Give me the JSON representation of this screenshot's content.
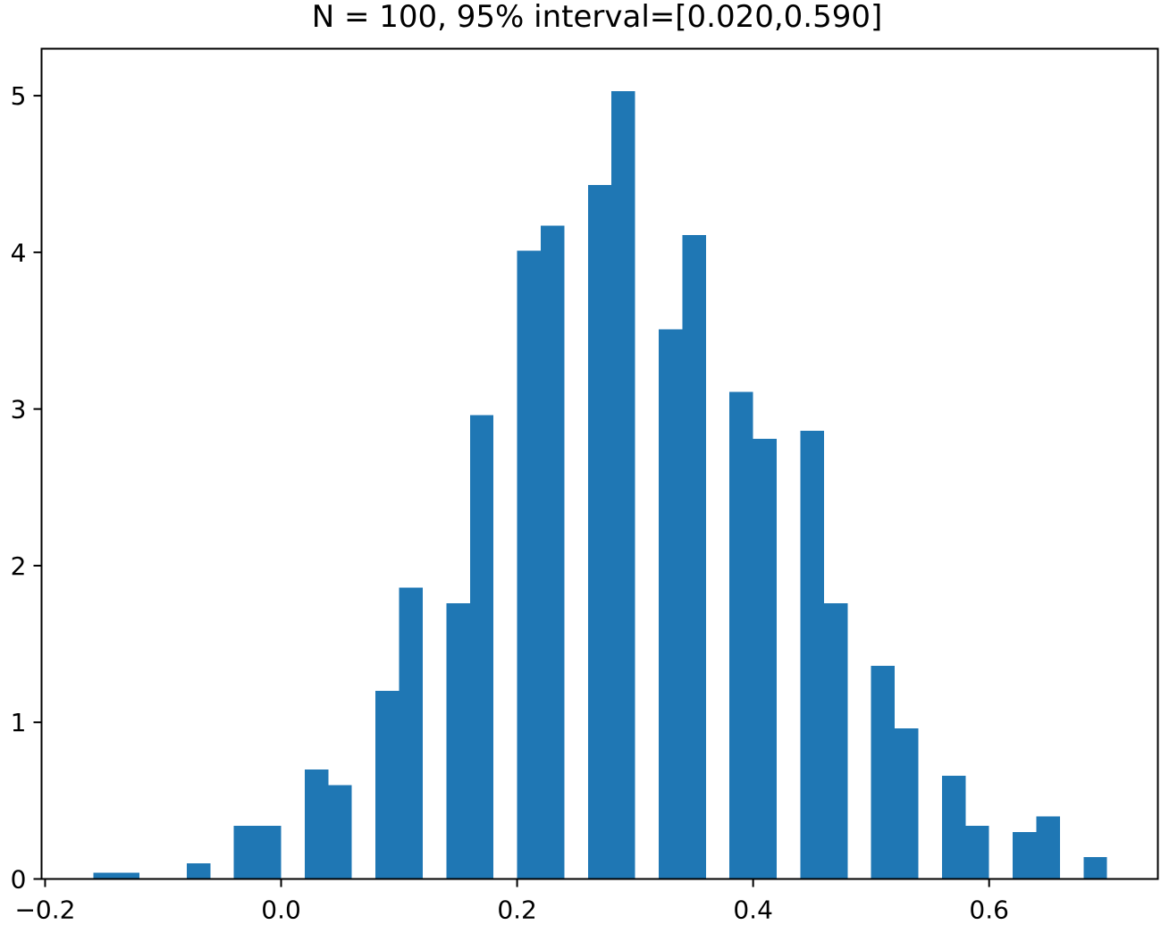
{
  "chart_data": {
    "type": "bar",
    "title": "N = 100, 95% interval=[0.020,0.590]",
    "xlabel": "",
    "ylabel": "",
    "xlim": [
      -0.203,
      0.743
    ],
    "ylim": [
      0,
      5.3
    ],
    "x_ticks": [
      -0.2,
      0.0,
      0.2,
      0.4,
      0.6
    ],
    "x_tick_labels": [
      "−0.2",
      "0.0",
      "0.2",
      "0.4",
      "0.6"
    ],
    "y_ticks": [
      0,
      1,
      2,
      3,
      4,
      5
    ],
    "y_tick_labels": [
      "0",
      "1",
      "2",
      "3",
      "4",
      "5"
    ],
    "grid": false,
    "bar_color": "#1f77b4",
    "bars": [
      {
        "x0": -0.159,
        "x1": -0.12,
        "value": 0.04
      },
      {
        "x0": -0.08,
        "x1": -0.06,
        "value": 0.1
      },
      {
        "x0": -0.04,
        "x1": -0.02,
        "value": 0.34
      },
      {
        "x0": -0.02,
        "x1": 0.0,
        "value": 0.34
      },
      {
        "x0": 0.02,
        "x1": 0.04,
        "value": 0.7
      },
      {
        "x0": 0.04,
        "x1": 0.06,
        "value": 0.6
      },
      {
        "x0": 0.08,
        "x1": 0.1,
        "value": 1.2
      },
      {
        "x0": 0.1,
        "x1": 0.12,
        "value": 1.86
      },
      {
        "x0": 0.14,
        "x1": 0.16,
        "value": 1.76
      },
      {
        "x0": 0.16,
        "x1": 0.18,
        "value": 2.96
      },
      {
        "x0": 0.2,
        "x1": 0.22,
        "value": 4.01
      },
      {
        "x0": 0.22,
        "x1": 0.24,
        "value": 4.17
      },
      {
        "x0": 0.26,
        "x1": 0.28,
        "value": 4.43
      },
      {
        "x0": 0.28,
        "x1": 0.3,
        "value": 5.03
      },
      {
        "x0": 0.32,
        "x1": 0.34,
        "value": 3.51
      },
      {
        "x0": 0.34,
        "x1": 0.36,
        "value": 4.11
      },
      {
        "x0": 0.38,
        "x1": 0.4,
        "value": 3.11
      },
      {
        "x0": 0.4,
        "x1": 0.42,
        "value": 2.81
      },
      {
        "x0": 0.44,
        "x1": 0.46,
        "value": 2.86
      },
      {
        "x0": 0.46,
        "x1": 0.48,
        "value": 1.76
      },
      {
        "x0": 0.5,
        "x1": 0.52,
        "value": 1.36
      },
      {
        "x0": 0.52,
        "x1": 0.54,
        "value": 0.96
      },
      {
        "x0": 0.56,
        "x1": 0.58,
        "value": 0.66
      },
      {
        "x0": 0.58,
        "x1": 0.6,
        "value": 0.34
      },
      {
        "x0": 0.62,
        "x1": 0.64,
        "value": 0.3
      },
      {
        "x0": 0.64,
        "x1": 0.66,
        "value": 0.4
      },
      {
        "x0": 0.68,
        "x1": 0.7,
        "value": 0.14
      }
    ]
  }
}
